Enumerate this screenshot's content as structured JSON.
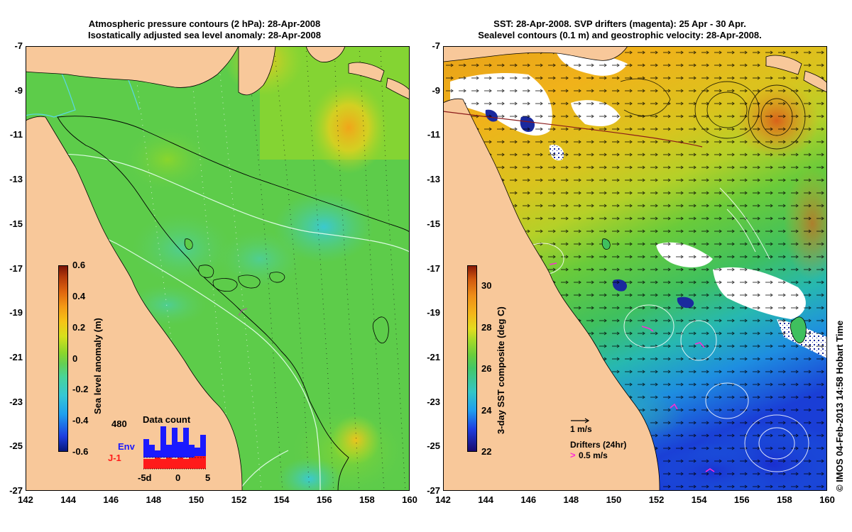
{
  "left": {
    "title_line1": "Atmospheric pressure contours (2 hPa): 28-Apr-2008",
    "title_line2": "Isostatically adjusted sea level anomaly: 28-Apr-2008",
    "colorbar": {
      "label": "Sea level anomaly (m)",
      "ticks": [
        "0.6",
        "0.4",
        "0.2",
        "0",
        "-0.2",
        "-0.4",
        "-0.6"
      ],
      "range": [
        -0.6,
        0.6
      ]
    },
    "histogram": {
      "title": "Data count",
      "max_label": "480",
      "xticks": [
        "-5d",
        "0",
        "5"
      ],
      "legend": [
        {
          "name": "Env",
          "color": "#1a1aff"
        },
        {
          "name": "J-1",
          "color": "#ff1a1a"
        }
      ]
    }
  },
  "right": {
    "title_line1": "SST: 28-Apr-2008. SVP drifters (magenta): 25 Apr - 30 Apr.",
    "title_line2": "Sealevel contours (0.1 m) and geostrophic velocity: 28-Apr-2008.",
    "colorbar": {
      "label": "3-day SST composite (deg C)",
      "ticks": [
        "30",
        "28",
        "26",
        "24",
        "22"
      ],
      "range": [
        22,
        31
      ]
    },
    "velocity_scale_label": "1 m/s",
    "drifters_label": "Drifters (24hr)",
    "drifters_speed_label": "0.5 m/s"
  },
  "axes": {
    "x_ticks": [
      "142",
      "144",
      "146",
      "148",
      "150",
      "152",
      "154",
      "156",
      "158",
      "160"
    ],
    "y_ticks": [
      "-7",
      "-9",
      "-11",
      "-13",
      "-15",
      "-17",
      "-19",
      "-21",
      "-23",
      "-25",
      "-27"
    ],
    "lon_range": [
      142,
      160
    ],
    "lat_range": [
      -27,
      -7
    ]
  },
  "colors": {
    "land": "#f8c89a",
    "drifter": "#ff2bd6"
  },
  "stamp": "© IMOS 04-Feb-2013 14:58 Hobart Time"
}
